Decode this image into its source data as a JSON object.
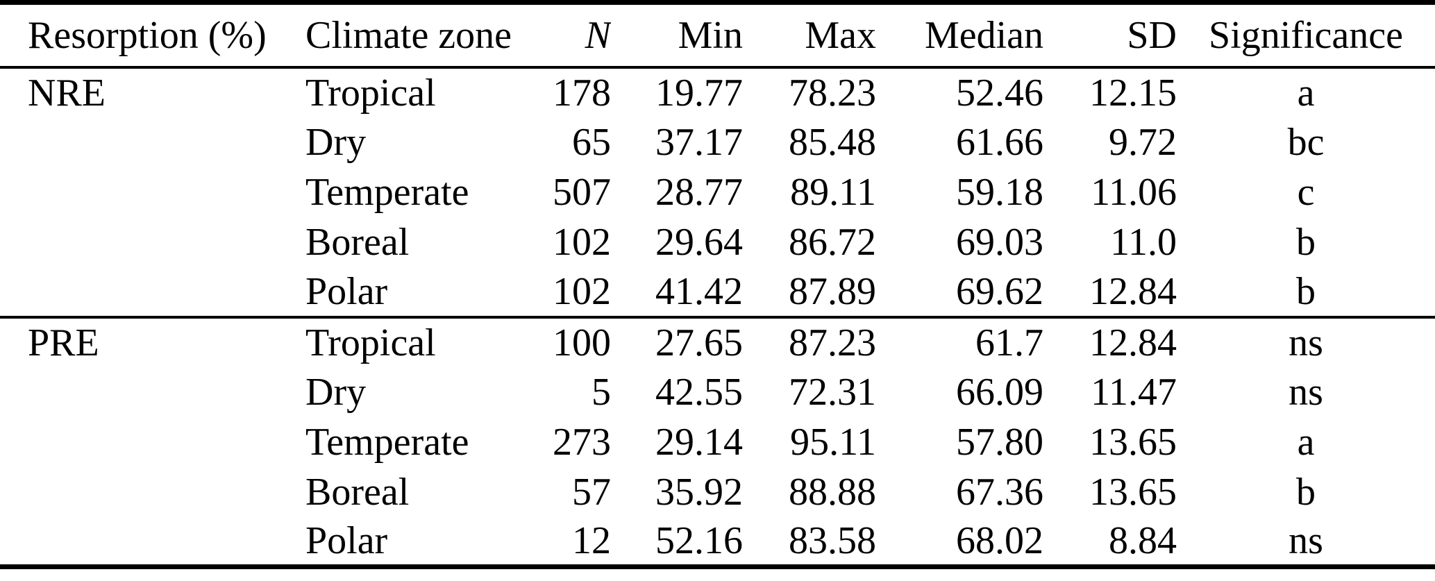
{
  "table": {
    "columns": [
      {
        "label": "Resorption (%)"
      },
      {
        "label": "Climate zone"
      },
      {
        "label": "N"
      },
      {
        "label": "Min"
      },
      {
        "label": "Max"
      },
      {
        "label": "Median"
      },
      {
        "label": "SD"
      },
      {
        "label": "Significance"
      }
    ],
    "groups": [
      {
        "resorption": "NRE",
        "rows": [
          {
            "climate_zone": "Tropical",
            "n": "178",
            "min": "19.77",
            "max": "78.23",
            "median": "52.46",
            "sd": "12.15",
            "significance": "a"
          },
          {
            "climate_zone": "Dry",
            "n": "65",
            "min": "37.17",
            "max": "85.48",
            "median": "61.66",
            "sd": "9.72",
            "significance": "bc"
          },
          {
            "climate_zone": "Temperate",
            "n": "507",
            "min": "28.77",
            "max": "89.11",
            "median": "59.18",
            "sd": "11.06",
            "significance": "c"
          },
          {
            "climate_zone": "Boreal",
            "n": "102",
            "min": "29.64",
            "max": "86.72",
            "median": "69.03",
            "sd": "11.0",
            "significance": "b"
          },
          {
            "climate_zone": "Polar",
            "n": "102",
            "min": "41.42",
            "max": "87.89",
            "median": "69.62",
            "sd": "12.84",
            "significance": "b"
          }
        ]
      },
      {
        "resorption": "PRE",
        "rows": [
          {
            "climate_zone": "Tropical",
            "n": "100",
            "min": "27.65",
            "max": "87.23",
            "median": "61.7",
            "sd": "12.84",
            "significance": "ns"
          },
          {
            "climate_zone": "Dry",
            "n": "5",
            "min": "42.55",
            "max": "72.31",
            "median": "66.09",
            "sd": "11.47",
            "significance": "ns"
          },
          {
            "climate_zone": "Temperate",
            "n": "273",
            "min": "29.14",
            "max": "95.11",
            "median": "57.80",
            "sd": "13.65",
            "significance": "a"
          },
          {
            "climate_zone": "Boreal",
            "n": "57",
            "min": "35.92",
            "max": "88.88",
            "median": "67.36",
            "sd": "13.65",
            "significance": "b"
          },
          {
            "climate_zone": "Polar",
            "n": "12",
            "min": "52.16",
            "max": "83.58",
            "median": "68.02",
            "sd": "8.84",
            "significance": "ns"
          }
        ]
      }
    ]
  },
  "chart_data": {
    "type": "table",
    "columns": [
      "Resorption (%)",
      "Climate zone",
      "N",
      "Min",
      "Max",
      "Median",
      "SD",
      "Significance"
    ],
    "rows": [
      [
        "NRE",
        "Tropical",
        "178",
        "19.77",
        "78.23",
        "52.46",
        "12.15",
        "a"
      ],
      [
        "NRE",
        "Dry",
        "65",
        "37.17",
        "85.48",
        "61.66",
        "9.72",
        "bc"
      ],
      [
        "NRE",
        "Temperate",
        "507",
        "28.77",
        "89.11",
        "59.18",
        "11.06",
        "c"
      ],
      [
        "NRE",
        "Boreal",
        "102",
        "29.64",
        "86.72",
        "69.03",
        "11.0",
        "b"
      ],
      [
        "NRE",
        "Polar",
        "102",
        "41.42",
        "87.89",
        "69.62",
        "12.84",
        "b"
      ],
      [
        "PRE",
        "Tropical",
        "100",
        "27.65",
        "87.23",
        "61.7",
        "12.84",
        "ns"
      ],
      [
        "PRE",
        "Dry",
        "5",
        "42.55",
        "72.31",
        "66.09",
        "11.47",
        "ns"
      ],
      [
        "PRE",
        "Temperate",
        "273",
        "29.14",
        "95.11",
        "57.80",
        "13.65",
        "a"
      ],
      [
        "PRE",
        "Boreal",
        "57",
        "35.92",
        "88.88",
        "67.36",
        "13.65",
        "b"
      ],
      [
        "PRE",
        "Polar",
        "12",
        "52.16",
        "83.58",
        "68.02",
        "8.84",
        "ns"
      ]
    ]
  },
  "colors": {
    "text": "#000000",
    "rule": "#000000",
    "background": "#ffffff"
  }
}
